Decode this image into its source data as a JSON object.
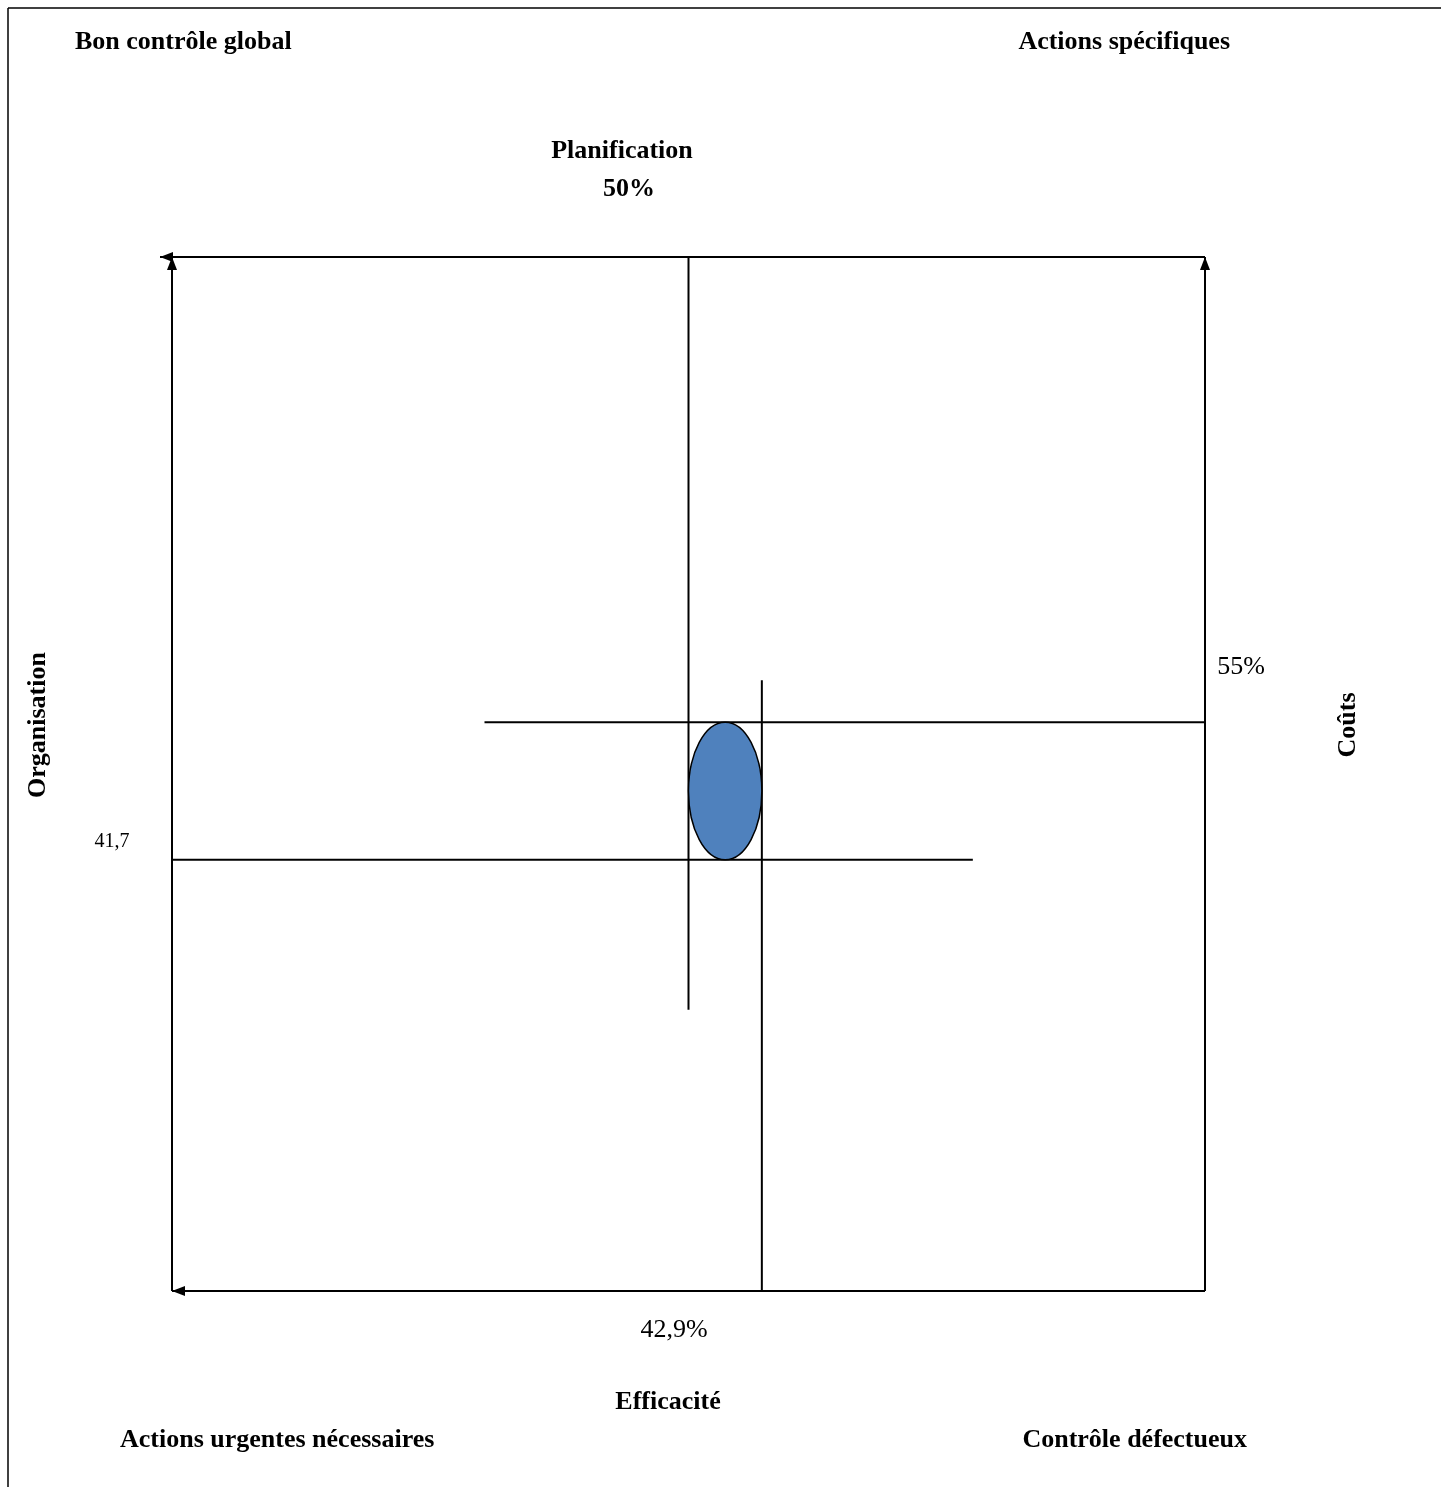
{
  "chart_data": {
    "type": "other",
    "categories": [
      "Planification",
      "Efficacité",
      "Organisation",
      "Coûts"
    ],
    "values": [
      50,
      42.9,
      41.7,
      55
    ],
    "value_labels": [
      "50%",
      "42,9%",
      "41,7",
      "55%"
    ],
    "annotations": [
      "Bon contrôle global",
      "Actions spécifiques",
      "Actions urgentes nécessaires",
      "Contrôle défectueux"
    ],
    "color": "#4f81bd"
  }
}
